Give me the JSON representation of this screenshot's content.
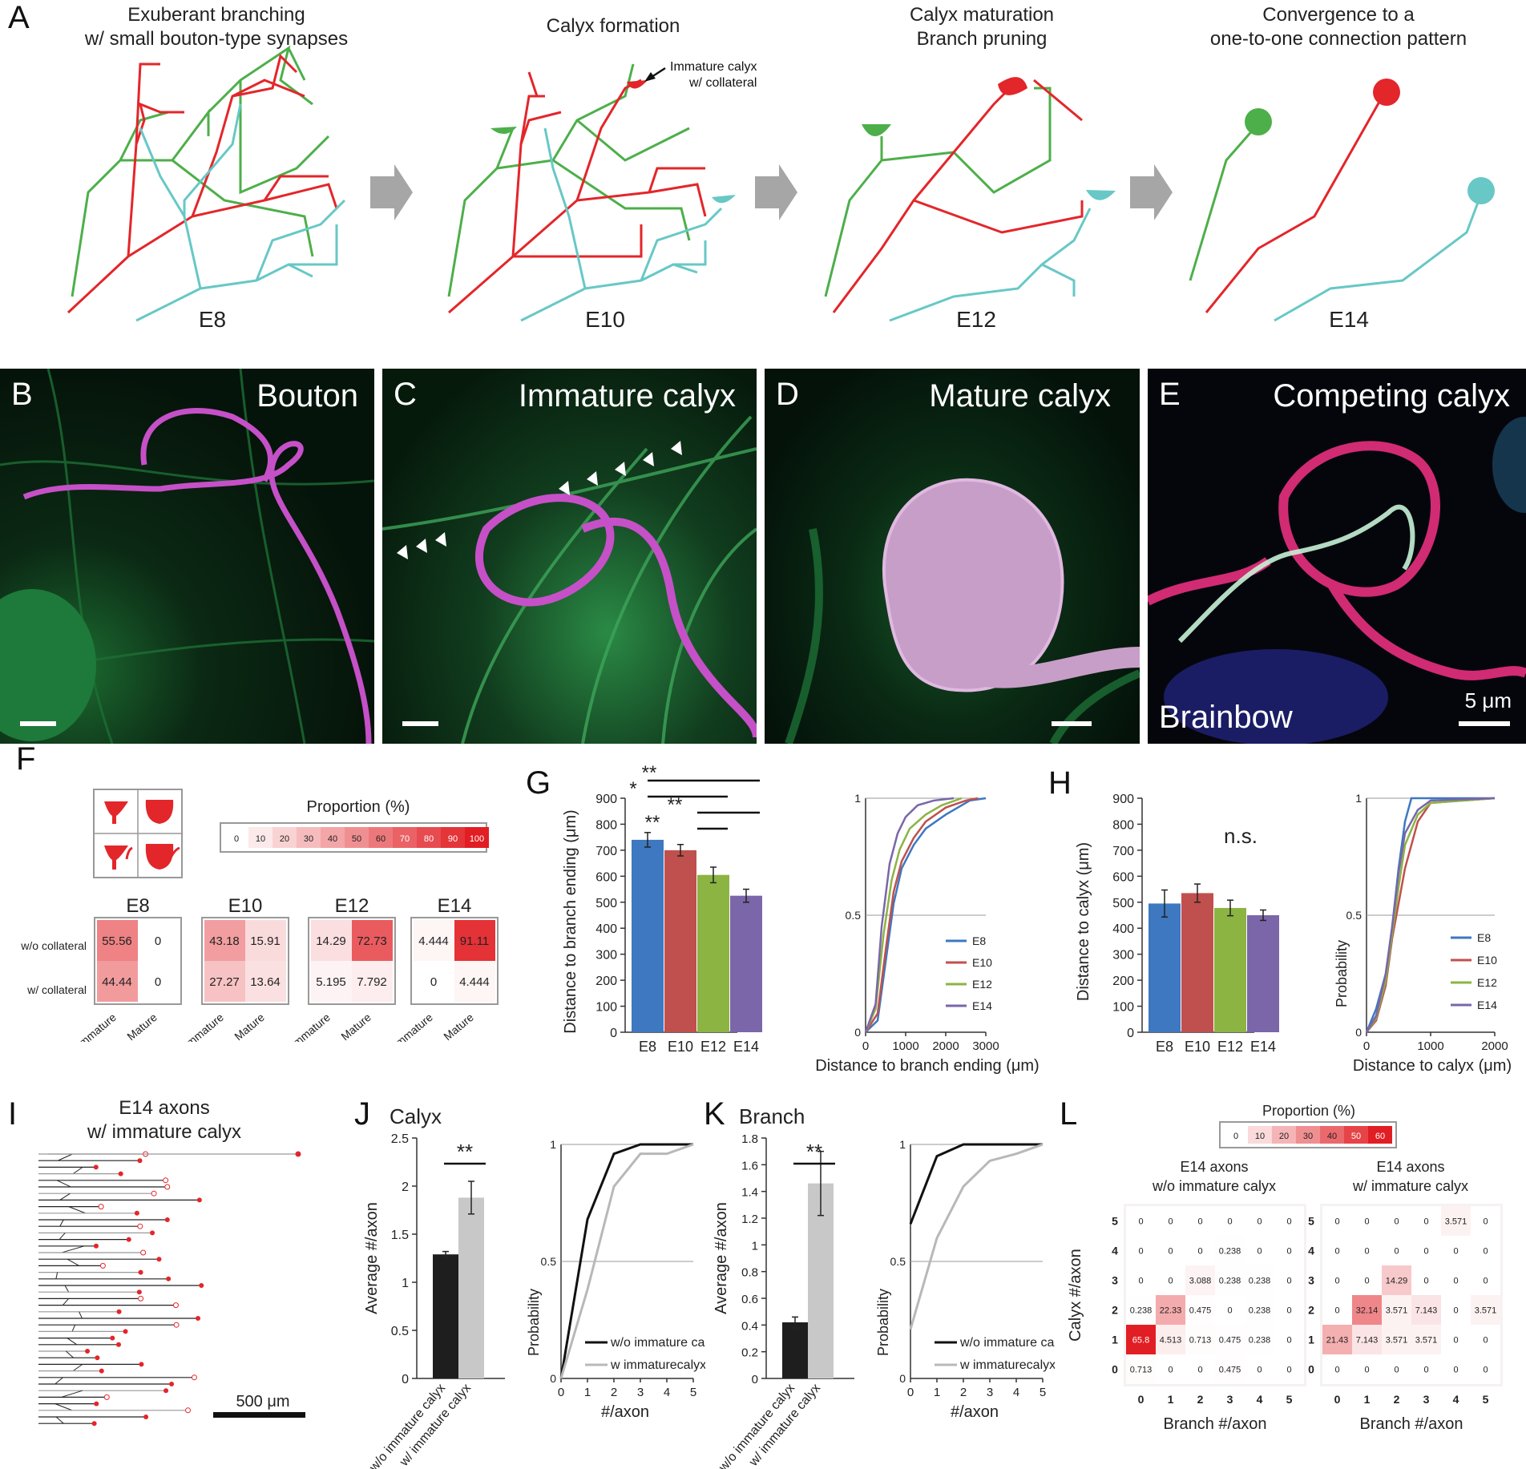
{
  "panels": {
    "A": {
      "label": "A",
      "stages": [
        {
          "title": "Exuberant  branching\nw/ small bouton-type synapses",
          "age": "E8"
        },
        {
          "title": "Calyx formation",
          "age": "E10"
        },
        {
          "title": "Calyx maturation\nBranch pruning",
          "age": "E12"
        },
        {
          "title": "Convergence to a\none-to-one connection pattern",
          "age": "E14"
        }
      ],
      "annotation": "Immature calyx\nw/ collateral"
    },
    "B": {
      "label": "B",
      "title": "Bouton"
    },
    "C": {
      "label": "C",
      "title": "Immature calyx"
    },
    "D": {
      "label": "D",
      "title": "Mature calyx"
    },
    "E": {
      "label": "E",
      "title": "Competing calyx",
      "caption": "Brainbow",
      "scale": "5 μm"
    },
    "F": {
      "label": "F",
      "legend_title": "Proportion (%)",
      "legend_ticks": [
        "0",
        "10",
        "20",
        "30",
        "40",
        "50",
        "60",
        "70",
        "80",
        "90",
        "100"
      ],
      "row_labels": [
        "w/o collateral",
        "w/ collateral"
      ],
      "col_labels": [
        "Immature",
        "Mature"
      ],
      "grids": [
        {
          "age": "E8",
          "values": [
            [
              "55.56",
              "0"
            ],
            [
              "44.44",
              "0"
            ]
          ]
        },
        {
          "age": "E10",
          "values": [
            [
              "43.18",
              "15.91"
            ],
            [
              "27.27",
              "13.64"
            ]
          ]
        },
        {
          "age": "E12",
          "values": [
            [
              "14.29",
              "72.73"
            ],
            [
              "5.195",
              "7.792"
            ]
          ]
        },
        {
          "age": "E14",
          "values": [
            [
              "4.444",
              "91.11"
            ],
            [
              "0",
              "4.444"
            ]
          ]
        }
      ]
    },
    "G": {
      "label": "G",
      "ylabel": "Distance to branch ending (μm)",
      "yticks": [
        "0",
        "100",
        "200",
        "300",
        "400",
        "500",
        "600",
        "700",
        "800",
        "900"
      ],
      "categories": [
        "E8",
        "E10",
        "E12",
        "E14"
      ],
      "sig": [
        "**",
        "*",
        "**",
        "**"
      ],
      "cdf_xlabel": "Distance to branch ending (μm)",
      "cdf_xticks": [
        "0",
        "1000",
        "2000",
        "3000"
      ],
      "cdf_yticks": [
        "0",
        "0.5",
        "1"
      ]
    },
    "H": {
      "label": "H",
      "ylabel": "Distance to calyx (μm)",
      "yticks": [
        "0",
        "100",
        "200",
        "300",
        "400",
        "500",
        "600",
        "700",
        "800",
        "900"
      ],
      "categories": [
        "E8",
        "E10",
        "E12",
        "E14"
      ],
      "sig": "n.s.",
      "cdf_xlabel": "Distance to calyx (μm)",
      "cdf_ylabel": "Probability",
      "cdf_xticks": [
        "0",
        "1000",
        "2000"
      ],
      "cdf_yticks": [
        "0",
        "0.5",
        "1"
      ]
    },
    "I": {
      "label": "I",
      "title": "E14 axons\nw/ immature calyx",
      "scale": "500 μm"
    },
    "J": {
      "label": "J",
      "title": "Calyx",
      "ylabel": "Average #/axon",
      "yticks": [
        "0",
        "0.5",
        "1",
        "1.5",
        "2",
        "2.5"
      ],
      "categories": [
        "w/o immature calyx",
        "w/ immature calyx"
      ],
      "sig": "**",
      "cdf_xlabel": "#/axon",
      "cdf_ylabel": "Probability",
      "cdf_xticks": [
        "0",
        "1",
        "2",
        "3",
        "4",
        "5"
      ],
      "cdf_yticks": [
        "0",
        "0.5",
        "1"
      ],
      "legend": [
        "w/o immature calyx",
        "w immaturecalyx"
      ]
    },
    "K": {
      "label": "K",
      "title": "Branch",
      "ylabel": "Average #/axon",
      "yticks": [
        "0",
        "0.2",
        "0.4",
        "0.6",
        "0.8",
        "1",
        "1.2",
        "1.4",
        "1.6",
        "1.8"
      ],
      "categories": [
        "w/o immature calyx",
        "w/ immature calyx"
      ],
      "sig": "**",
      "cdf_xlabel": "#/axon",
      "cdf_ylabel": "Probability",
      "cdf_xticks": [
        "0",
        "1",
        "2",
        "3",
        "4",
        "5"
      ],
      "cdf_yticks": [
        "0",
        "0.5",
        "1"
      ],
      "legend": [
        "w/o immature calyx",
        "w immaturecalyx"
      ]
    },
    "L": {
      "label": "L",
      "legend_title": "Proportion (%)",
      "legend_ticks": [
        "0",
        "10",
        "20",
        "30",
        "40",
        "50",
        "60"
      ],
      "ylabel": "Calyx #/axon",
      "xlabel": "Branch #/axon",
      "axis_ticks": [
        "0",
        "1",
        "2",
        "3",
        "4",
        "5"
      ],
      "matrices": [
        {
          "title": "E14 axons\nw/o immature calyx"
        },
        {
          "title": "E14 axons\nw/ immature calyx"
        }
      ]
    }
  },
  "chart_data": [
    {
      "type": "bar",
      "panel": "G",
      "categories": [
        "E8",
        "E10",
        "E12",
        "E14"
      ],
      "values": [
        740,
        700,
        605,
        525
      ],
      "errors": [
        28,
        22,
        30,
        25
      ],
      "ylim": [
        0,
        900
      ],
      "colors": [
        "#3d78c1",
        "#c0504d",
        "#8bb443",
        "#7a66a8"
      ]
    },
    {
      "type": "line",
      "panel": "G-cdf",
      "xlim": [
        0,
        3000
      ],
      "ylim": [
        0,
        1
      ],
      "series": [
        {
          "name": "E8",
          "x": [
            0,
            300,
            500,
            700,
            900,
            1200,
            1500,
            2000,
            2600,
            3000
          ],
          "y": [
            0,
            0.05,
            0.3,
            0.55,
            0.7,
            0.8,
            0.87,
            0.93,
            0.99,
            1
          ]
        },
        {
          "name": "E10",
          "x": [
            0,
            300,
            500,
            700,
            900,
            1200,
            1500,
            2000,
            2500,
            2800
          ],
          "y": [
            0,
            0.08,
            0.35,
            0.6,
            0.73,
            0.83,
            0.9,
            0.96,
            0.99,
            1
          ]
        },
        {
          "name": "E12",
          "x": [
            0,
            250,
            450,
            650,
            850,
            1100,
            1500,
            1900,
            2400
          ],
          "y": [
            0,
            0.1,
            0.42,
            0.65,
            0.78,
            0.87,
            0.93,
            0.97,
            1
          ]
        },
        {
          "name": "E14",
          "x": [
            0,
            250,
            400,
            600,
            800,
            1000,
            1300,
            1700,
            2200
          ],
          "y": [
            0,
            0.12,
            0.45,
            0.72,
            0.85,
            0.92,
            0.97,
            0.99,
            1
          ]
        }
      ]
    },
    {
      "type": "bar",
      "panel": "H",
      "categories": [
        "E8",
        "E10",
        "E12",
        "E14"
      ],
      "values": [
        495,
        535,
        478,
        450
      ],
      "errors": [
        52,
        35,
        30,
        20
      ],
      "ylim": [
        0,
        900
      ],
      "colors": [
        "#3d78c1",
        "#c0504d",
        "#8bb443",
        "#7a66a8"
      ]
    },
    {
      "type": "line",
      "panel": "H-cdf",
      "xlim": [
        0,
        2000
      ],
      "ylim": [
        0,
        1
      ],
      "series": [
        {
          "name": "E8",
          "x": [
            0,
            150,
            300,
            400,
            500,
            600,
            700,
            2000
          ],
          "y": [
            0,
            0.1,
            0.25,
            0.45,
            0.7,
            0.9,
            1,
            1
          ]
        },
        {
          "name": "E10",
          "x": [
            0,
            150,
            300,
            400,
            500,
            600,
            700,
            800,
            1000,
            2000
          ],
          "y": [
            0,
            0.05,
            0.2,
            0.4,
            0.55,
            0.7,
            0.8,
            0.9,
            0.98,
            1
          ]
        },
        {
          "name": "E12",
          "x": [
            0,
            150,
            300,
            400,
            500,
            600,
            800,
            1000,
            2000
          ],
          "y": [
            0,
            0.06,
            0.22,
            0.42,
            0.62,
            0.8,
            0.93,
            0.98,
            1
          ]
        },
        {
          "name": "E14",
          "x": [
            0,
            150,
            300,
            400,
            500,
            600,
            800,
            1000,
            2000
          ],
          "y": [
            0,
            0.07,
            0.25,
            0.45,
            0.68,
            0.85,
            0.95,
            0.99,
            1
          ]
        }
      ]
    },
    {
      "type": "bar",
      "panel": "J",
      "categories": [
        "w/o immature calyx",
        "w/ immature calyx"
      ],
      "values": [
        1.29,
        1.88
      ],
      "errors": [
        0.03,
        0.17
      ],
      "ylim": [
        0,
        2.5
      ],
      "colors": [
        "#1e1e1e",
        "#c8c8c8"
      ]
    },
    {
      "type": "line",
      "panel": "J-cdf",
      "xlim": [
        0,
        5
      ],
      "ylim": [
        0,
        1
      ],
      "series": [
        {
          "name": "w/o immature calyx",
          "x": [
            0,
            1,
            2,
            3,
            4,
            5
          ],
          "y": [
            0,
            0.68,
            0.96,
            1,
            1,
            1
          ]
        },
        {
          "name": "w immaturecalyx",
          "x": [
            0,
            1,
            2,
            3,
            4,
            5
          ],
          "y": [
            0,
            0.38,
            0.82,
            0.96,
            0.96,
            1
          ]
        }
      ]
    },
    {
      "type": "bar",
      "panel": "K",
      "categories": [
        "w/o immature calyx",
        "w/ immature calyx"
      ],
      "values": [
        0.42,
        1.46
      ],
      "errors": [
        0.04,
        0.24
      ],
      "ylim": [
        0,
        1.8
      ],
      "colors": [
        "#1e1e1e",
        "#c8c8c8"
      ]
    },
    {
      "type": "line",
      "panel": "K-cdf",
      "xlim": [
        0,
        5
      ],
      "ylim": [
        0,
        1
      ],
      "series": [
        {
          "name": "w/o immature calyx",
          "x": [
            0,
            1,
            2,
            3,
            4,
            5
          ],
          "y": [
            0.66,
            0.95,
            1,
            1,
            1,
            1
          ]
        },
        {
          "name": "w immaturecalyx",
          "x": [
            0,
            1,
            2,
            3,
            4,
            5
          ],
          "y": [
            0.21,
            0.6,
            0.82,
            0.93,
            0.96,
            1
          ]
        }
      ]
    },
    {
      "type": "heatmap",
      "panel": "L-left",
      "rows_top_to_bottom": [
        "5",
        "4",
        "3",
        "2",
        "1",
        "0"
      ],
      "cols": [
        "0",
        "1",
        "2",
        "3",
        "4",
        "5"
      ],
      "values": [
        [
          "0",
          "0",
          "0",
          "0",
          "0",
          "0"
        ],
        [
          "0",
          "0",
          "0",
          "0.238",
          "0",
          "0"
        ],
        [
          "0",
          "0",
          "3.088",
          "0.238",
          "0.238",
          "0"
        ],
        [
          "0.238",
          "22.33",
          "0.475",
          "0",
          "0.238",
          "0"
        ],
        [
          "65.8",
          "4.513",
          "0.713",
          "0.475",
          "0.238",
          "0"
        ],
        [
          "0.713",
          "0",
          "0",
          "0.475",
          "0",
          "0"
        ]
      ]
    },
    {
      "type": "heatmap",
      "panel": "L-right",
      "rows_top_to_bottom": [
        "5",
        "4",
        "3",
        "2",
        "1",
        "0"
      ],
      "cols": [
        "0",
        "1",
        "2",
        "3",
        "4",
        "5"
      ],
      "values": [
        [
          "0",
          "0",
          "0",
          "0",
          "3.571",
          "0"
        ],
        [
          "0",
          "0",
          "0",
          "0",
          "0",
          "0"
        ],
        [
          "0",
          "0",
          "14.29",
          "0",
          "0",
          "0"
        ],
        [
          "0",
          "32.14",
          "3.571",
          "7.143",
          "0",
          "3.571"
        ],
        [
          "21.43",
          "7.143",
          "3.571",
          "3.571",
          "0",
          "0"
        ],
        [
          "0",
          "0",
          "0",
          "0",
          "0",
          "0"
        ]
      ]
    }
  ]
}
